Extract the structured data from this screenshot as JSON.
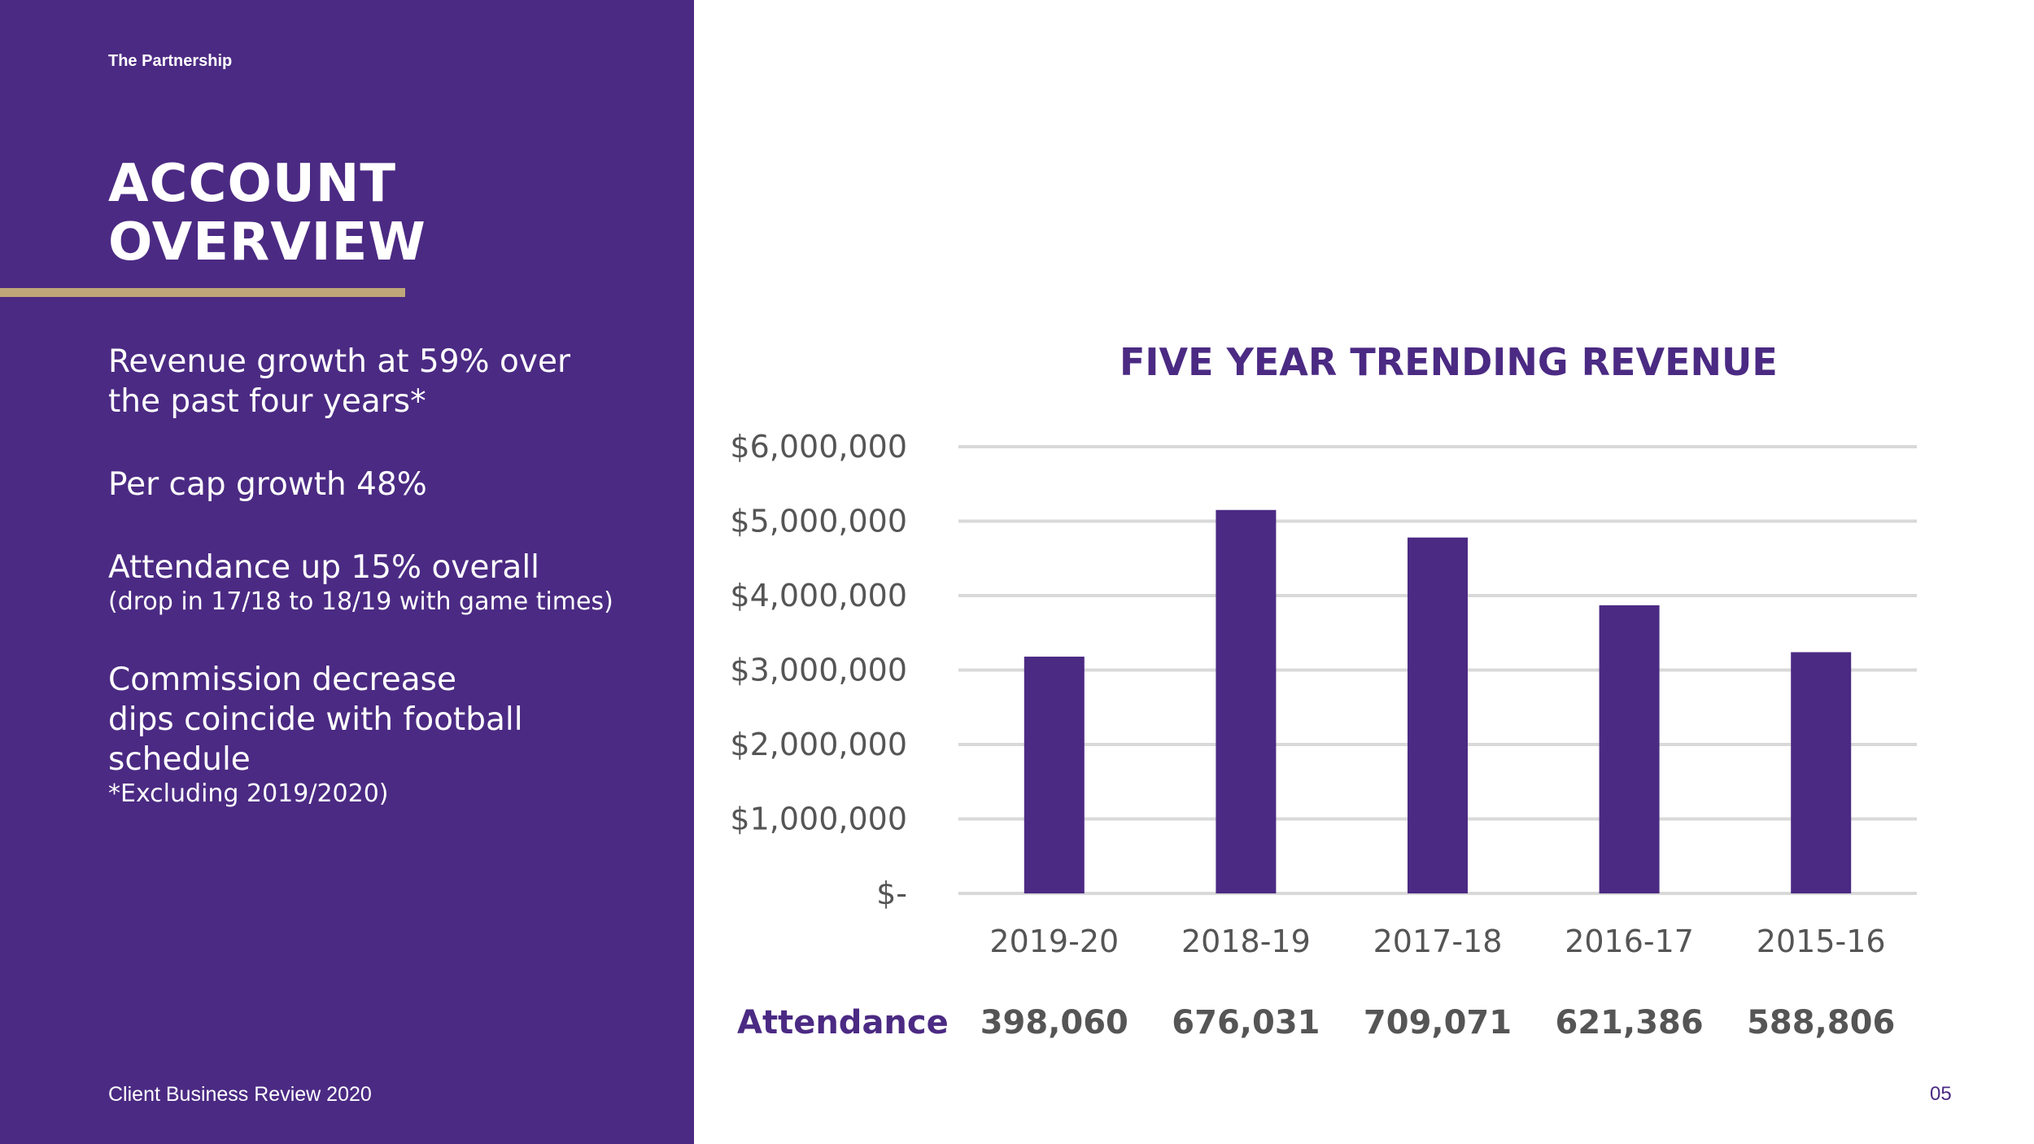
{
  "colors": {
    "brand_purple": "#4b2a83",
    "accent_gold": "#bfa77a",
    "text_gray": "#555555",
    "grid": "#d9d9d9"
  },
  "sidebar": {
    "section_label": "The Partnership",
    "title_line1": "ACCOUNT",
    "title_line2": "OVERVIEW",
    "bullets": [
      {
        "line1": "Revenue growth at 59% over",
        "line2": "the past four years*"
      },
      {
        "line1": "Per cap growth 48%"
      },
      {
        "line1": "Attendance up 15% overall",
        "small": "(drop in 17/18 to 18/19 with game times)"
      },
      {
        "line1": "Commission decrease",
        "line2": "dips coincide with football",
        "line3": "schedule",
        "note": "*Excluding 2019/2020)"
      }
    ],
    "footer": "Client Business Review 2020"
  },
  "page_number": "05",
  "chart_data": {
    "type": "bar",
    "title": "FIVE YEAR TRENDING REVENUE",
    "categories": [
      "2019-20",
      "2018-19",
      "2017-18",
      "2016-17",
      "2015-16"
    ],
    "values": [
      3180000,
      5150000,
      4780000,
      3870000,
      3240000
    ],
    "ylim": [
      0,
      6000000
    ],
    "yticks": [
      {
        "value": 0,
        "label": "$-"
      },
      {
        "value": 1000000,
        "label": "$1,000,000"
      },
      {
        "value": 2000000,
        "label": "$2,000,000"
      },
      {
        "value": 3000000,
        "label": "$3,000,000"
      },
      {
        "value": 4000000,
        "label": "$4,000,000"
      },
      {
        "value": 5000000,
        "label": "$5,000,000"
      },
      {
        "value": 6000000,
        "label": "$6,000,000"
      }
    ],
    "xlabel": "",
    "ylabel": "",
    "grid": true
  },
  "attendance": {
    "label": "Attendance",
    "values": [
      "398,060",
      "676,031",
      "709,071",
      "621,386",
      "588,806"
    ]
  }
}
